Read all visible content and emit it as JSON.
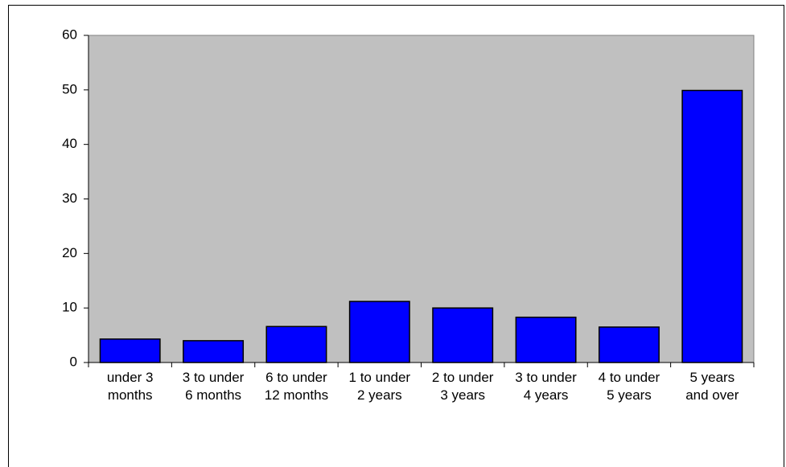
{
  "chart_data": {
    "type": "bar",
    "categories": [
      [
        "under 3",
        "months"
      ],
      [
        "3 to under",
        "6 months"
      ],
      [
        "6 to under",
        "12 months"
      ],
      [
        "1 to under",
        "2 years"
      ],
      [
        "2 to under",
        "3 years"
      ],
      [
        "3 to under",
        "4 years"
      ],
      [
        "4 to under",
        "5 years"
      ],
      [
        "5 years",
        "and over"
      ]
    ],
    "values": [
      4.3,
      4.0,
      6.6,
      11.2,
      10.0,
      8.3,
      6.5,
      49.9
    ],
    "color": "#0000ff",
    "plot_background": "#c0c0c0",
    "ylim": [
      0,
      60
    ],
    "yticks": [
      0,
      10,
      20,
      30,
      40,
      50,
      60
    ],
    "grid": false
  }
}
